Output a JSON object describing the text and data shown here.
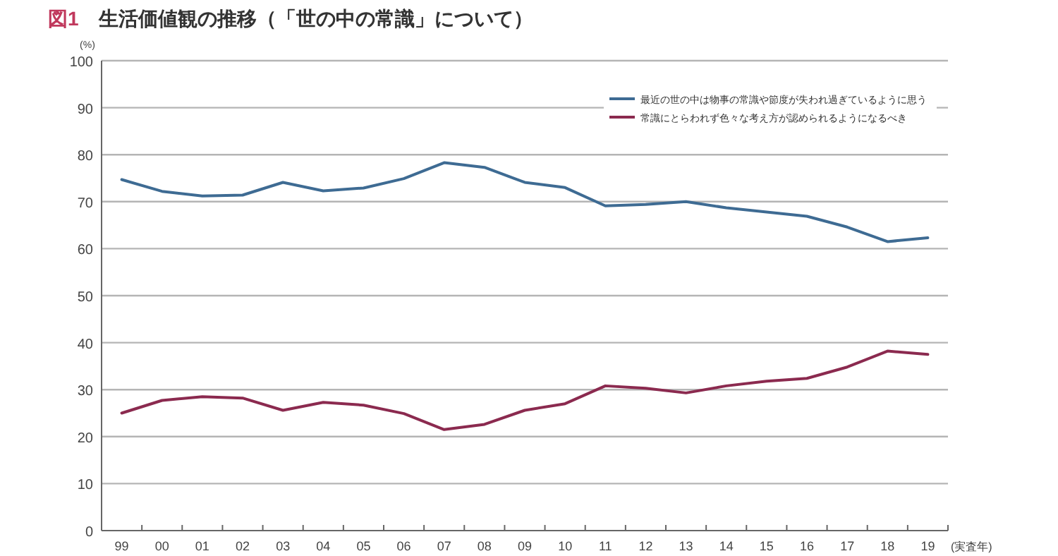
{
  "chart_data": {
    "type": "line",
    "title": "図1　生活価値観の推移（「世の中の常識」について）",
    "ylabel": "(%)",
    "xlabel": "(実査年)",
    "categories": [
      "99",
      "00",
      "01",
      "02",
      "03",
      "04",
      "05",
      "06",
      "07",
      "08",
      "09",
      "10",
      "11",
      "12",
      "13",
      "14",
      "15",
      "16",
      "17",
      "18",
      "19"
    ],
    "series": [
      {
        "name": "最近の世の中は物事の常識や節度が失われ過ぎているように思う",
        "color": "#3e6b93",
        "values": [
          74.7,
          72.2,
          71.2,
          71.4,
          74.1,
          72.3,
          72.9,
          74.9,
          78.3,
          77.3,
          74.1,
          73.0,
          69.1,
          69.4,
          70.0,
          68.7,
          67.8,
          66.9,
          64.6,
          61.5,
          62.3
        ]
      },
      {
        "name": "常識にとらわれず色々な考え方が認められるようになるべき",
        "color": "#8b2a4f",
        "values": [
          25.0,
          27.7,
          28.5,
          28.2,
          25.6,
          27.3,
          26.7,
          24.9,
          21.5,
          22.6,
          25.6,
          27.0,
          30.8,
          30.3,
          29.3,
          30.8,
          31.8,
          32.4,
          34.8,
          38.2,
          37.5
        ]
      }
    ],
    "ylim": [
      0,
      100
    ],
    "yticks": [
      0,
      10,
      20,
      30,
      40,
      50,
      60,
      70,
      80,
      90,
      100
    ],
    "grid": "y",
    "legend": "top right",
    "marker": "none",
    "line_style": "solid"
  }
}
